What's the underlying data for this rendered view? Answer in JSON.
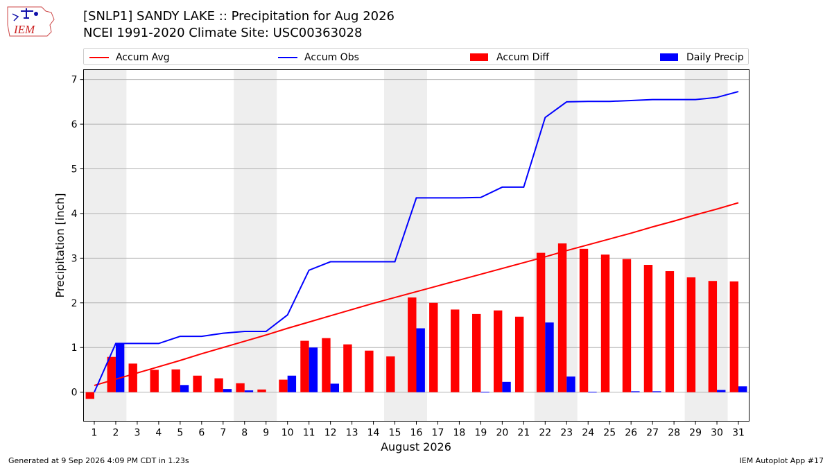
{
  "header": {
    "title_line1": "[SNLP1] SANDY LAKE :: Precipitation for Aug 2026",
    "title_line2": "NCEI 1991-2020 Climate Site: USC00363028",
    "logo_text": "IEM"
  },
  "footer": {
    "left": "Generated at 9 Sep 2026 4:09 PM CDT in 1.23s",
    "right": "IEM Autoplot App #17"
  },
  "colors": {
    "avg": "#ff0000",
    "obs": "#0000ff",
    "diff": "#ff0000",
    "daily": "#0000ff",
    "weekend_band": "#eeeeee",
    "grid": "#b0b0b0"
  },
  "chart_data": {
    "type": "bar",
    "xlabel": "August 2026",
    "ylabel": "Precipitation [inch]",
    "ylim": [
      -0.65,
      7.22
    ],
    "yticks": [
      0,
      1,
      2,
      3,
      4,
      5,
      6,
      7
    ],
    "grid": true,
    "legend_position": "top",
    "categories": [
      1,
      2,
      3,
      4,
      5,
      6,
      7,
      8,
      9,
      10,
      11,
      12,
      13,
      14,
      15,
      16,
      17,
      18,
      19,
      20,
      21,
      22,
      23,
      24,
      25,
      26,
      27,
      28,
      29,
      30,
      31
    ],
    "shaded_weekend_ranges": [
      [
        1,
        2
      ],
      [
        8,
        9
      ],
      [
        15,
        16
      ],
      [
        22,
        23
      ],
      [
        29,
        30
      ]
    ],
    "series": [
      {
        "name": "Accum Avg",
        "kind": "line",
        "values": [
          0.15,
          0.29,
          0.43,
          0.57,
          0.71,
          0.86,
          1.0,
          1.14,
          1.28,
          1.43,
          1.57,
          1.71,
          1.85,
          1.99,
          2.12,
          2.25,
          2.38,
          2.51,
          2.64,
          2.77,
          2.9,
          3.03,
          3.17,
          3.3,
          3.43,
          3.56,
          3.7,
          3.83,
          3.97,
          4.1,
          4.24
        ]
      },
      {
        "name": "Accum Obs",
        "kind": "line",
        "values": [
          0.0,
          1.09,
          1.09,
          1.09,
          1.25,
          1.25,
          1.32,
          1.36,
          1.36,
          1.73,
          2.73,
          2.92,
          2.92,
          2.92,
          2.92,
          4.35,
          4.35,
          4.35,
          4.36,
          4.59,
          4.59,
          6.15,
          6.5,
          6.51,
          6.51,
          6.53,
          6.55,
          6.55,
          6.55,
          6.6,
          6.73
        ]
      },
      {
        "name": "Accum Diff",
        "kind": "bar",
        "values": [
          -0.15,
          0.79,
          0.64,
          0.5,
          0.51,
          0.37,
          0.31,
          0.2,
          0.06,
          0.28,
          1.15,
          1.21,
          1.07,
          0.93,
          0.8,
          2.12,
          2.0,
          1.85,
          1.75,
          1.83,
          1.69,
          3.12,
          3.33,
          3.21,
          3.08,
          2.98,
          2.85,
          2.71,
          2.57,
          2.49,
          2.48
        ]
      },
      {
        "name": "Daily Precip",
        "kind": "bar",
        "values": [
          0.0,
          1.09,
          0.0,
          0.0,
          0.16,
          0.0,
          0.07,
          0.04,
          0.0,
          0.37,
          1.0,
          0.19,
          0.0,
          0.0,
          0.0,
          1.43,
          0.0,
          0.0,
          0.01,
          0.23,
          0.0,
          1.56,
          0.35,
          0.01,
          0.0,
          0.02,
          0.02,
          0.0,
          0.0,
          0.05,
          0.13
        ]
      }
    ]
  }
}
